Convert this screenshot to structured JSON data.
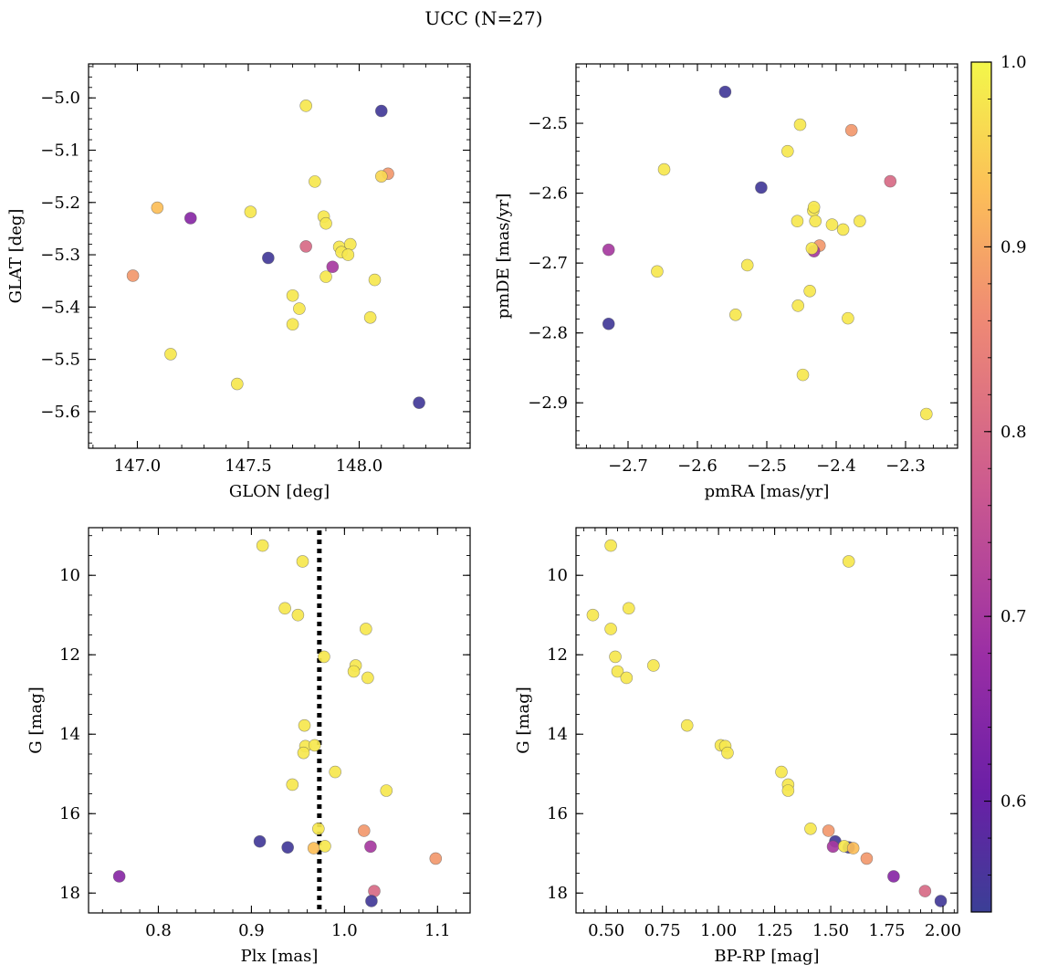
{
  "figure": {
    "title": "UCC (N=27)",
    "colorbar": {
      "range": [
        0.54,
        1.0
      ],
      "ticks": [
        0.6,
        0.7,
        0.8,
        0.9,
        1.0
      ],
      "tick_labels": [
        "0.6",
        "0.7",
        "0.8",
        "0.9",
        "1.0"
      ],
      "colormap": "plasma"
    }
  },
  "chart_data": [
    {
      "type": "scatter",
      "xlabel": "GLON [deg]",
      "ylabel": "GLAT [deg]",
      "xlim": [
        146.78,
        148.5
      ],
      "ylim": [
        -5.67,
        -4.935
      ],
      "invert_y": false,
      "xticks": [
        147.0,
        147.5,
        148.0
      ],
      "xtick_labels": [
        "147.0",
        "147.5",
        "148.0"
      ],
      "yticks": [
        -5.0,
        -5.1,
        -5.2,
        -5.3,
        -5.4,
        -5.5,
        -5.6
      ],
      "ytick_labels": [
        "−5.0",
        "−5.1",
        "−5.2",
        "−5.3",
        "−5.4",
        "−5.5",
        "−5.6"
      ],
      "points": [
        {
          "x": 147.76,
          "y": -5.015,
          "c": 0.98
        },
        {
          "x": 148.1,
          "y": -5.025,
          "c": 0.55
        },
        {
          "x": 147.8,
          "y": -5.16,
          "c": 0.98
        },
        {
          "x": 148.13,
          "y": -5.145,
          "c": 0.88
        },
        {
          "x": 148.1,
          "y": -5.15,
          "c": 0.96
        },
        {
          "x": 147.09,
          "y": -5.21,
          "c": 0.93
        },
        {
          "x": 147.24,
          "y": -5.23,
          "c": 0.65
        },
        {
          "x": 147.51,
          "y": -5.218,
          "c": 0.98
        },
        {
          "x": 147.84,
          "y": -5.227,
          "c": 0.98
        },
        {
          "x": 147.85,
          "y": -5.24,
          "c": 0.98
        },
        {
          "x": 147.76,
          "y": -5.284,
          "c": 0.8
        },
        {
          "x": 147.91,
          "y": -5.285,
          "c": 0.98
        },
        {
          "x": 147.96,
          "y": -5.28,
          "c": 0.98
        },
        {
          "x": 147.92,
          "y": -5.295,
          "c": 0.98
        },
        {
          "x": 147.95,
          "y": -5.3,
          "c": 0.98
        },
        {
          "x": 147.59,
          "y": -5.306,
          "c": 0.55
        },
        {
          "x": 147.88,
          "y": -5.323,
          "c": 0.7
        },
        {
          "x": 147.85,
          "y": -5.342,
          "c": 0.98
        },
        {
          "x": 146.98,
          "y": -5.34,
          "c": 0.88
        },
        {
          "x": 148.07,
          "y": -5.348,
          "c": 0.98
        },
        {
          "x": 147.7,
          "y": -5.378,
          "c": 0.98
        },
        {
          "x": 147.73,
          "y": -5.403,
          "c": 0.98
        },
        {
          "x": 148.05,
          "y": -5.42,
          "c": 0.98
        },
        {
          "x": 147.7,
          "y": -5.433,
          "c": 0.98
        },
        {
          "x": 147.15,
          "y": -5.49,
          "c": 0.98
        },
        {
          "x": 147.45,
          "y": -5.547,
          "c": 0.98
        },
        {
          "x": 148.27,
          "y": -5.583,
          "c": 0.55
        }
      ]
    },
    {
      "type": "scatter",
      "xlabel": "pmRA [mas/yr]",
      "ylabel": "pmDE [mas/yr]",
      "xlim": [
        -2.775,
        -2.225
      ],
      "ylim": [
        -2.965,
        -2.415
      ],
      "invert_y": false,
      "xticks": [
        -2.7,
        -2.6,
        -2.5,
        -2.4,
        -2.3
      ],
      "xtick_labels": [
        "−2.7",
        "−2.6",
        "−2.5",
        "−2.4",
        "−2.3"
      ],
      "yticks": [
        -2.5,
        -2.6,
        -2.7,
        -2.8,
        -2.9
      ],
      "ytick_labels": [
        "−2.5",
        "−2.6",
        "−2.7",
        "−2.8",
        "−2.9"
      ],
      "points": [
        {
          "x": -2.56,
          "y": -2.455,
          "c": 0.55
        },
        {
          "x": -2.452,
          "y": -2.502,
          "c": 0.98
        },
        {
          "x": -2.378,
          "y": -2.51,
          "c": 0.88
        },
        {
          "x": -2.47,
          "y": -2.54,
          "c": 0.98
        },
        {
          "x": -2.648,
          "y": -2.566,
          "c": 0.98
        },
        {
          "x": -2.322,
          "y": -2.583,
          "c": 0.8
        },
        {
          "x": -2.508,
          "y": -2.592,
          "c": 0.55
        },
        {
          "x": -2.433,
          "y": -2.625,
          "c": 0.98
        },
        {
          "x": -2.432,
          "y": -2.62,
          "c": 0.98
        },
        {
          "x": -2.456,
          "y": -2.64,
          "c": 0.98
        },
        {
          "x": -2.43,
          "y": -2.64,
          "c": 0.98
        },
        {
          "x": -2.406,
          "y": -2.645,
          "c": 0.98
        },
        {
          "x": -2.366,
          "y": -2.64,
          "c": 0.98
        },
        {
          "x": -2.39,
          "y": -2.652,
          "c": 0.98
        },
        {
          "x": -2.424,
          "y": -2.675,
          "c": 0.88
        },
        {
          "x": -2.432,
          "y": -2.683,
          "c": 0.7
        },
        {
          "x": -2.435,
          "y": -2.679,
          "c": 0.98
        },
        {
          "x": -2.728,
          "y": -2.681,
          "c": 0.7
        },
        {
          "x": -2.528,
          "y": -2.703,
          "c": 0.98
        },
        {
          "x": -2.658,
          "y": -2.712,
          "c": 0.98
        },
        {
          "x": -2.438,
          "y": -2.74,
          "c": 0.98
        },
        {
          "x": -2.455,
          "y": -2.761,
          "c": 0.98
        },
        {
          "x": -2.545,
          "y": -2.774,
          "c": 0.98
        },
        {
          "x": -2.383,
          "y": -2.779,
          "c": 0.98
        },
        {
          "x": -2.728,
          "y": -2.787,
          "c": 0.55
        },
        {
          "x": -2.448,
          "y": -2.86,
          "c": 0.98
        },
        {
          "x": -2.27,
          "y": -2.916,
          "c": 0.98
        }
      ]
    },
    {
      "type": "scatter",
      "xlabel": "Plx [mas]",
      "ylabel": "G [mag]",
      "xlim": [
        0.725,
        1.135
      ],
      "ylim": [
        8.8,
        18.5
      ],
      "invert_y": true,
      "vline": {
        "x": 0.973,
        "style": "dotted"
      },
      "xticks": [
        0.8,
        0.9,
        1.0,
        1.1
      ],
      "xtick_labels": [
        "0.8",
        "0.9",
        "1.0",
        "1.1"
      ],
      "yticks": [
        10,
        12,
        14,
        16,
        18
      ],
      "ytick_labels": [
        "10",
        "12",
        "14",
        "16",
        "18"
      ],
      "points": [
        {
          "x": 0.912,
          "y": 9.25,
          "c": 0.98
        },
        {
          "x": 0.955,
          "y": 9.65,
          "c": 0.98
        },
        {
          "x": 0.936,
          "y": 10.83,
          "c": 0.98
        },
        {
          "x": 0.95,
          "y": 11.0,
          "c": 0.98
        },
        {
          "x": 1.023,
          "y": 11.35,
          "c": 0.98
        },
        {
          "x": 0.978,
          "y": 12.05,
          "c": 0.98
        },
        {
          "x": 1.012,
          "y": 12.27,
          "c": 0.98
        },
        {
          "x": 1.01,
          "y": 12.42,
          "c": 0.98
        },
        {
          "x": 1.025,
          "y": 12.58,
          "c": 0.98
        },
        {
          "x": 0.957,
          "y": 13.78,
          "c": 0.98
        },
        {
          "x": 0.958,
          "y": 14.3,
          "c": 0.98
        },
        {
          "x": 0.968,
          "y": 14.28,
          "c": 0.98
        },
        {
          "x": 0.956,
          "y": 14.47,
          "c": 0.98
        },
        {
          "x": 0.99,
          "y": 14.95,
          "c": 0.98
        },
        {
          "x": 0.944,
          "y": 15.27,
          "c": 0.98
        },
        {
          "x": 1.045,
          "y": 15.42,
          "c": 0.98
        },
        {
          "x": 0.972,
          "y": 16.38,
          "c": 0.98
        },
        {
          "x": 1.021,
          "y": 16.43,
          "c": 0.88
        },
        {
          "x": 0.909,
          "y": 16.7,
          "c": 0.55
        },
        {
          "x": 0.939,
          "y": 16.85,
          "c": 0.55
        },
        {
          "x": 0.967,
          "y": 16.87,
          "c": 0.93
        },
        {
          "x": 0.979,
          "y": 16.82,
          "c": 0.98
        },
        {
          "x": 1.028,
          "y": 16.83,
          "c": 0.7
        },
        {
          "x": 1.098,
          "y": 17.13,
          "c": 0.88
        },
        {
          "x": 0.758,
          "y": 17.58,
          "c": 0.65
        },
        {
          "x": 1.032,
          "y": 17.95,
          "c": 0.8
        },
        {
          "x": 1.029,
          "y": 18.2,
          "c": 0.55
        }
      ]
    },
    {
      "type": "scatter",
      "xlabel": "BP-RP [mag]",
      "ylabel": "G [mag]",
      "xlim": [
        0.365,
        2.065
      ],
      "ylim": [
        8.8,
        18.5
      ],
      "invert_y": true,
      "xticks": [
        0.5,
        0.75,
        1.0,
        1.25,
        1.5,
        1.75,
        2.0
      ],
      "xtick_labels": [
        "0.50",
        "0.75",
        "1.00",
        "1.25",
        "1.50",
        "1.75",
        "2.00"
      ],
      "yticks": [
        10,
        12,
        14,
        16,
        18
      ],
      "ytick_labels": [
        "10",
        "12",
        "14",
        "16",
        "18"
      ],
      "points": [
        {
          "x": 0.52,
          "y": 9.25,
          "c": 0.98
        },
        {
          "x": 1.58,
          "y": 9.65,
          "c": 0.98
        },
        {
          "x": 0.6,
          "y": 10.83,
          "c": 0.98
        },
        {
          "x": 0.44,
          "y": 11.0,
          "c": 0.98
        },
        {
          "x": 0.52,
          "y": 11.35,
          "c": 0.98
        },
        {
          "x": 0.54,
          "y": 12.05,
          "c": 0.98
        },
        {
          "x": 0.71,
          "y": 12.27,
          "c": 0.98
        },
        {
          "x": 0.55,
          "y": 12.42,
          "c": 0.98
        },
        {
          "x": 0.59,
          "y": 12.58,
          "c": 0.98
        },
        {
          "x": 0.86,
          "y": 13.78,
          "c": 0.98
        },
        {
          "x": 1.01,
          "y": 14.28,
          "c": 0.98
        },
        {
          "x": 1.03,
          "y": 14.3,
          "c": 0.98
        },
        {
          "x": 1.04,
          "y": 14.47,
          "c": 0.98
        },
        {
          "x": 1.28,
          "y": 14.95,
          "c": 0.98
        },
        {
          "x": 1.31,
          "y": 15.27,
          "c": 0.98
        },
        {
          "x": 1.31,
          "y": 15.42,
          "c": 0.98
        },
        {
          "x": 1.41,
          "y": 16.38,
          "c": 0.98
        },
        {
          "x": 1.49,
          "y": 16.43,
          "c": 0.88
        },
        {
          "x": 1.52,
          "y": 16.7,
          "c": 0.55
        },
        {
          "x": 1.58,
          "y": 16.85,
          "c": 0.55
        },
        {
          "x": 1.51,
          "y": 16.83,
          "c": 0.7
        },
        {
          "x": 1.56,
          "y": 16.82,
          "c": 0.98
        },
        {
          "x": 1.6,
          "y": 16.87,
          "c": 0.93
        },
        {
          "x": 1.66,
          "y": 17.13,
          "c": 0.88
        },
        {
          "x": 1.78,
          "y": 17.58,
          "c": 0.65
        },
        {
          "x": 1.92,
          "y": 17.95,
          "c": 0.8
        },
        {
          "x": 1.99,
          "y": 18.2,
          "c": 0.55
        }
      ]
    }
  ]
}
